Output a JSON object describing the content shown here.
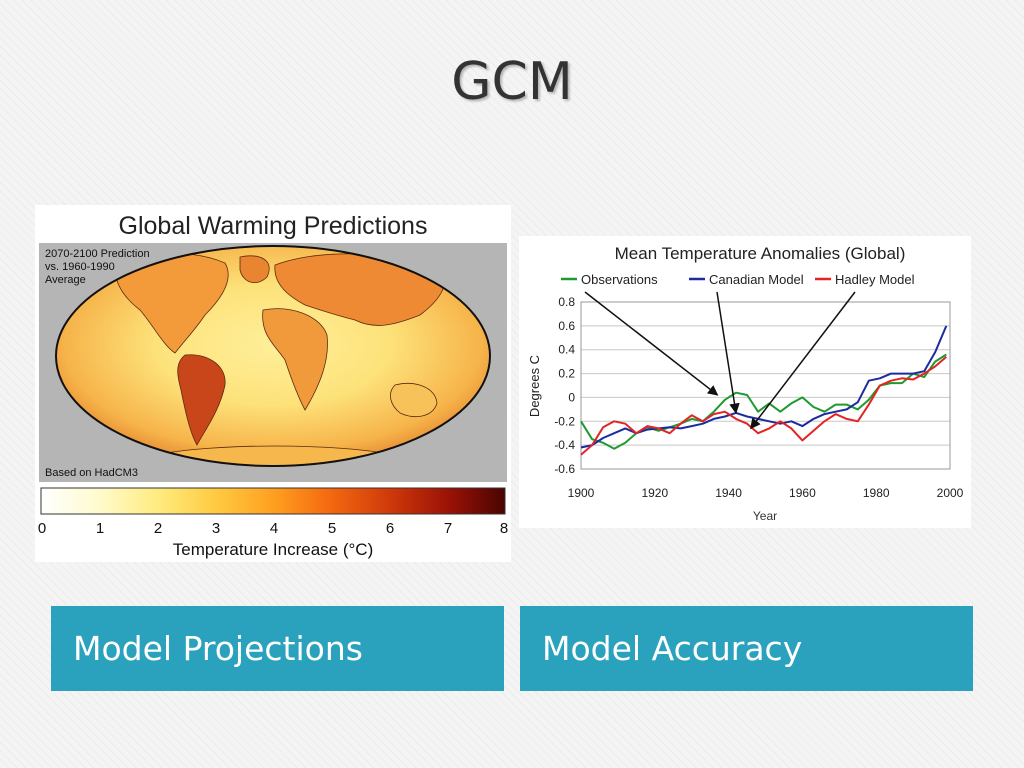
{
  "slide": {
    "title": "GCM"
  },
  "captions": {
    "left": "Model Projections",
    "right": "Model Accuracy"
  },
  "map_figure": {
    "title": "Global Warming Predictions",
    "note_line1": "2070-2100 Prediction",
    "note_line2": "vs. 1960-1990",
    "note_line3": "Average",
    "source": "Based on HadCM3",
    "scale_label": "Temperature Increase (°C)",
    "scale_ticks": [
      "0",
      "1",
      "2",
      "3",
      "4",
      "5",
      "6",
      "7",
      "8"
    ]
  },
  "colors": {
    "caption_bg": "#2aa2bd",
    "observations": "#1e9a2e",
    "canadian": "#1c2ba0",
    "hadley": "#e42424"
  },
  "chart_data": {
    "type": "line",
    "title": "Mean Temperature Anomalies (Global)",
    "xlabel": "Year",
    "ylabel": "Degrees C",
    "xlim": [
      1900,
      2000
    ],
    "ylim": [
      -0.6,
      0.8
    ],
    "xticks": [
      1900,
      1920,
      1940,
      1960,
      1980,
      2000
    ],
    "yticks": [
      0.8,
      0.6,
      0.4,
      0.2,
      0,
      -0.2,
      -0.4,
      -0.6
    ],
    "grid": true,
    "legend_position": "top",
    "series": [
      {
        "name": "Observations",
        "color": "#1e9a2e",
        "x": [
          1900,
          1903,
          1906,
          1909,
          1912,
          1915,
          1918,
          1921,
          1924,
          1927,
          1930,
          1933,
          1936,
          1939,
          1942,
          1945,
          1948,
          1951,
          1954,
          1957,
          1960,
          1963,
          1966,
          1969,
          1972,
          1975,
          1978,
          1981,
          1984,
          1987,
          1990,
          1993,
          1996,
          1999
        ],
        "y": [
          -0.2,
          -0.35,
          -0.38,
          -0.43,
          -0.38,
          -0.3,
          -0.25,
          -0.28,
          -0.25,
          -0.22,
          -0.18,
          -0.2,
          -0.12,
          -0.02,
          0.04,
          0.02,
          -0.12,
          -0.05,
          -0.12,
          -0.05,
          0.0,
          -0.08,
          -0.12,
          -0.06,
          -0.06,
          -0.1,
          -0.02,
          0.1,
          0.12,
          0.12,
          0.2,
          0.17,
          0.3,
          0.36
        ]
      },
      {
        "name": "Canadian Model",
        "color": "#1c2ba0",
        "x": [
          1900,
          1903,
          1906,
          1909,
          1912,
          1915,
          1918,
          1921,
          1924,
          1927,
          1930,
          1933,
          1936,
          1939,
          1942,
          1945,
          1948,
          1951,
          1954,
          1957,
          1960,
          1963,
          1966,
          1969,
          1972,
          1975,
          1978,
          1981,
          1984,
          1987,
          1990,
          1993,
          1996,
          1999
        ],
        "y": [
          -0.42,
          -0.4,
          -0.34,
          -0.3,
          -0.26,
          -0.3,
          -0.27,
          -0.26,
          -0.25,
          -0.26,
          -0.24,
          -0.22,
          -0.18,
          -0.16,
          -0.13,
          -0.16,
          -0.18,
          -0.2,
          -0.22,
          -0.2,
          -0.24,
          -0.18,
          -0.14,
          -0.12,
          -0.1,
          -0.04,
          0.14,
          0.16,
          0.2,
          0.2,
          0.2,
          0.22,
          0.38,
          0.6
        ]
      },
      {
        "name": "Hadley Model",
        "color": "#e42424",
        "x": [
          1900,
          1903,
          1906,
          1909,
          1912,
          1915,
          1918,
          1921,
          1924,
          1927,
          1930,
          1933,
          1936,
          1939,
          1942,
          1945,
          1948,
          1951,
          1954,
          1957,
          1960,
          1963,
          1966,
          1969,
          1972,
          1975,
          1978,
          1981,
          1984,
          1987,
          1990,
          1993,
          1996,
          1999
        ],
        "y": [
          -0.48,
          -0.4,
          -0.25,
          -0.2,
          -0.22,
          -0.3,
          -0.24,
          -0.26,
          -0.3,
          -0.22,
          -0.15,
          -0.2,
          -0.14,
          -0.12,
          -0.18,
          -0.22,
          -0.3,
          -0.26,
          -0.2,
          -0.26,
          -0.36,
          -0.28,
          -0.2,
          -0.14,
          -0.18,
          -0.2,
          -0.06,
          0.1,
          0.14,
          0.16,
          0.15,
          0.2,
          0.26,
          0.34
        ]
      }
    ]
  }
}
